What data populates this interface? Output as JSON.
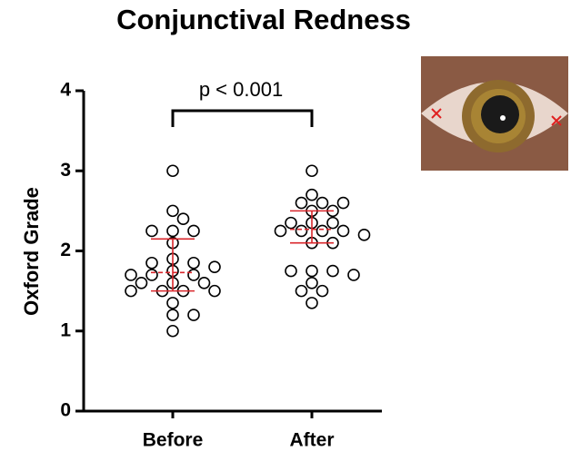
{
  "chart_data": {
    "type": "strip",
    "title": "Conjunctival Redness",
    "y_label": "Oxford Grade",
    "annotation": "p < 0.001",
    "categories": [
      "Before",
      "After"
    ],
    "ylim": [
      0,
      4
    ],
    "yticks": [
      0,
      1,
      2,
      3,
      4
    ],
    "series": [
      {
        "values": [
          3.0,
          2.5,
          2.4,
          2.25,
          2.25,
          2.25,
          2.1,
          1.9,
          1.85,
          1.85,
          1.8,
          1.75,
          1.7,
          1.7,
          1.7,
          1.6,
          1.6,
          1.6,
          1.5,
          1.5,
          1.5,
          1.5,
          1.35,
          1.2,
          1.2,
          1.0
        ],
        "center": 1.73,
        "low": 1.5,
        "high": 2.15
      },
      {
        "values": [
          3.0,
          2.7,
          2.6,
          2.6,
          2.6,
          2.5,
          2.5,
          2.35,
          2.35,
          2.35,
          2.25,
          2.25,
          2.25,
          2.25,
          2.2,
          2.1,
          2.1,
          1.75,
          1.75,
          1.75,
          1.7,
          1.6,
          1.5,
          1.5,
          1.35
        ],
        "center": 2.27,
        "low": 2.1,
        "high": 2.5
      }
    ],
    "marker_color": "#000000",
    "summary_color": "#d9262b"
  }
}
